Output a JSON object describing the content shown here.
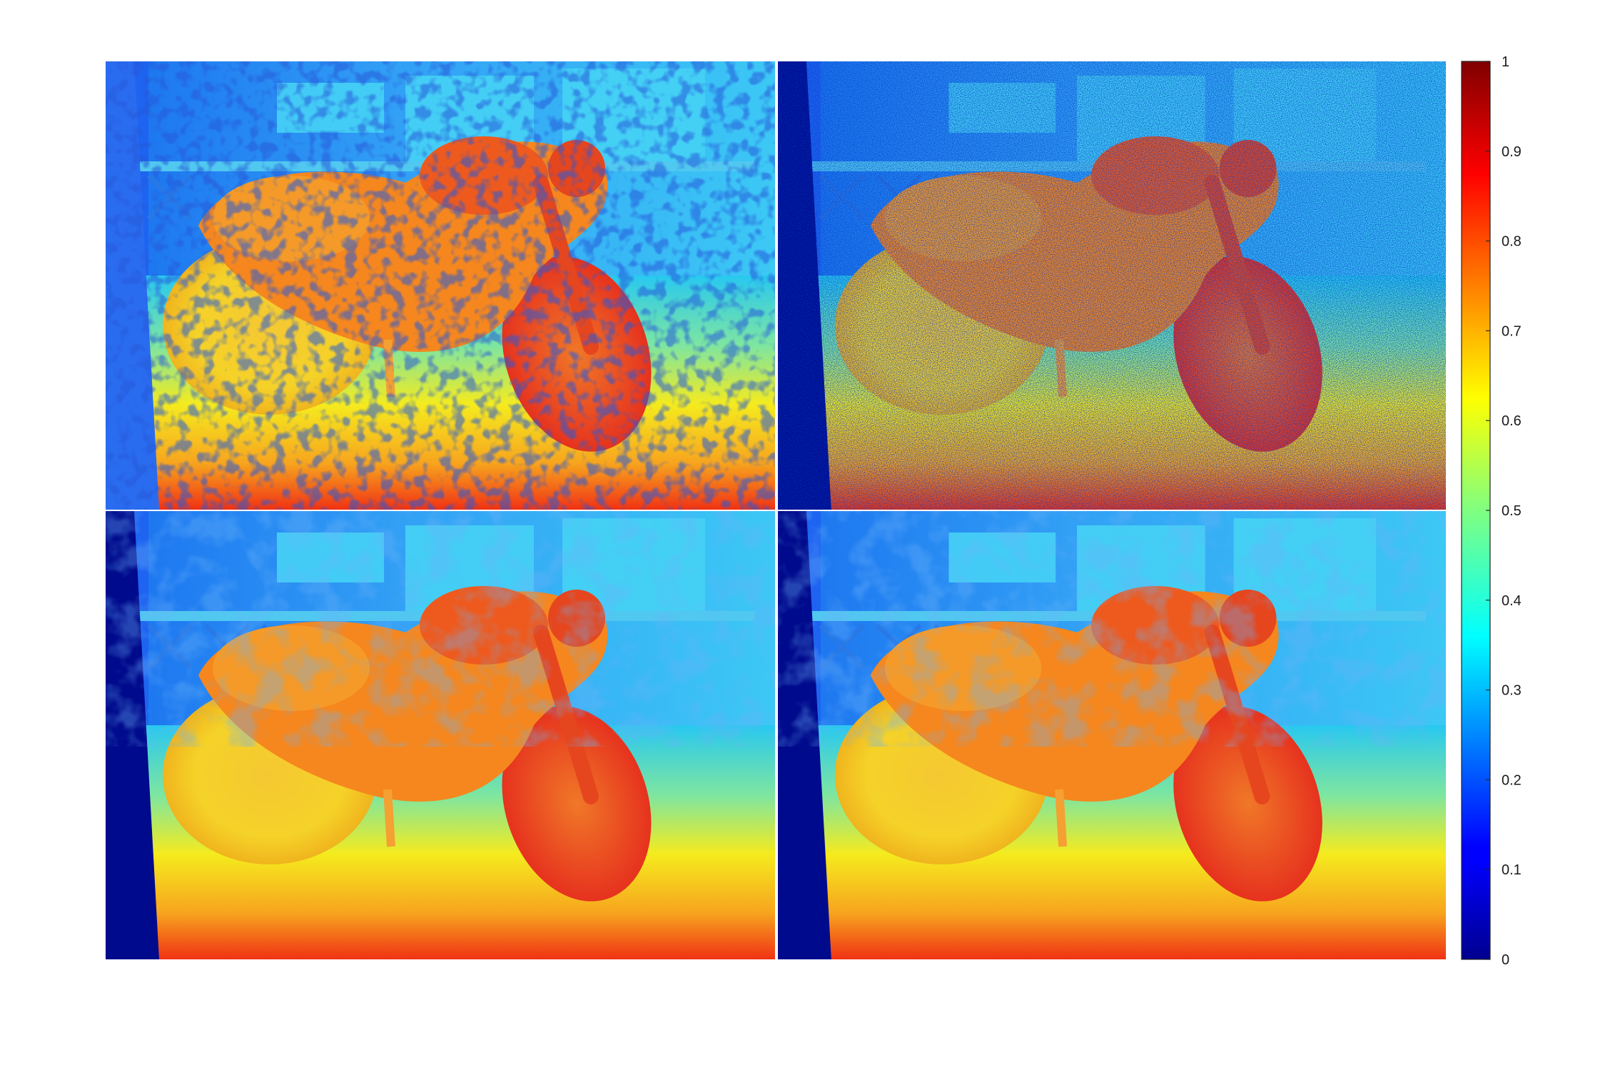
{
  "figure": {
    "panels": [
      {
        "id": "top-left",
        "style": "smooth-with-speckle"
      },
      {
        "id": "top-right",
        "style": "noisy-raw"
      },
      {
        "id": "bottom-left",
        "style": "smooth"
      },
      {
        "id": "bottom-right",
        "style": "smooth-refined"
      }
    ],
    "colorbar": {
      "colormap": "jet",
      "min": 0,
      "max": 1,
      "tick_labels": [
        "0",
        "0.1",
        "0.2",
        "0.3",
        "0.4",
        "0.5",
        "0.6",
        "0.7",
        "0.8",
        "0.9",
        "1"
      ]
    },
    "colors": {
      "background_far": "#1e64f0",
      "wall": "#3cb4f5",
      "floor_mid": "#f5e61e",
      "floor_near": "#f03c14",
      "bike_body": "#f5871e",
      "bike_front": "#e6461e",
      "bike_wheel": "#f5d228",
      "hole": "#000a8c"
    }
  }
}
